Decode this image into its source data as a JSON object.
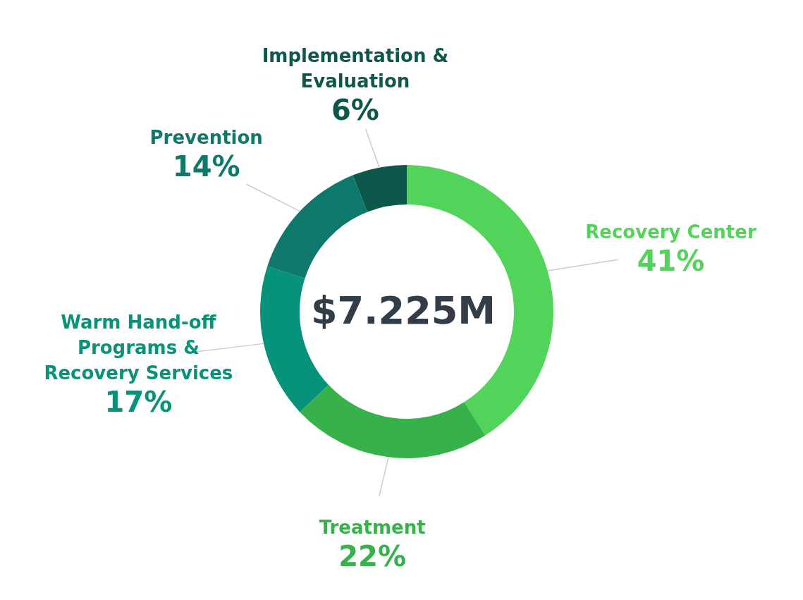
{
  "chart_data": {
    "type": "donut",
    "categories": [
      "Recovery Center",
      "Treatment",
      "Warm Hand-off Programs & Recovery Services",
      "Prevention",
      "Implementation & Evaluation"
    ],
    "values": [
      41,
      22,
      17,
      14,
      6
    ],
    "value_labels": [
      "41%",
      "22%",
      "17%",
      "14%",
      "6%"
    ],
    "colors": [
      "#52d35a",
      "#37b24b",
      "#07937a",
      "#0e786a",
      "#0d574b"
    ],
    "annotations": [
      "$7.225M"
    ],
    "legend": false
  }
}
